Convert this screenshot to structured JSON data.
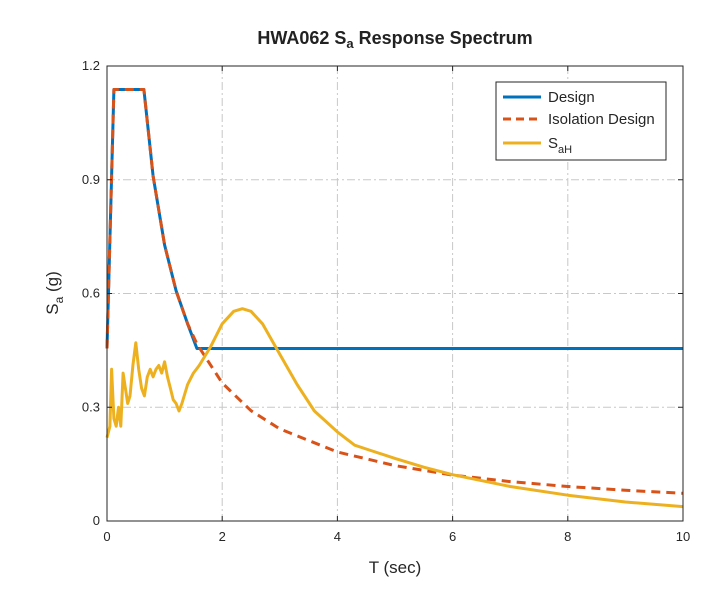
{
  "chart_data": {
    "type": "line",
    "title_prefix": "HWA062 S",
    "title_sub": "a",
    "title_suffix": " Response Spectrum",
    "xlabel": "T (sec)",
    "ylabel_main": "S",
    "ylabel_sub": "a",
    "ylabel_suffix": " (g)",
    "xlim": [
      0,
      10
    ],
    "ylim": [
      0,
      1.2
    ],
    "xticks": [
      0,
      2,
      4,
      6,
      8,
      10
    ],
    "yticks": [
      0,
      0.3,
      0.6,
      0.9,
      1.2
    ],
    "ytick_labels": [
      "0",
      "0.3",
      "0.6",
      "0.9",
      "1.2"
    ],
    "grid": true,
    "legend_placement": "top-right",
    "series": [
      {
        "name": "Design",
        "name_sub": "",
        "color": "#0072BD",
        "style": "solid",
        "x": [
          0,
          0.12,
          0.64,
          0.8,
          1.0,
          1.2,
          1.4,
          1.56,
          10
        ],
        "y": [
          0.455,
          1.138,
          1.138,
          0.91,
          0.728,
          0.607,
          0.52,
          0.455,
          0.455
        ]
      },
      {
        "name": "Isolation Design",
        "name_sub": "",
        "color": "#D95319",
        "style": "dashed",
        "x": [
          0,
          0.12,
          0.64,
          0.8,
          1.0,
          1.2,
          1.4,
          1.56,
          2.0,
          2.5,
          3.0,
          4.0,
          5.0,
          6.0,
          7.0,
          8.0,
          9.0,
          10.0
        ],
        "y": [
          0.455,
          1.138,
          1.138,
          0.91,
          0.728,
          0.607,
          0.52,
          0.467,
          0.364,
          0.291,
          0.243,
          0.182,
          0.146,
          0.121,
          0.104,
          0.091,
          0.081,
          0.073
        ]
      },
      {
        "name": "S",
        "name_sub": "aH",
        "color": "#EDB120",
        "style": "solid",
        "x": [
          0,
          0.05,
          0.08,
          0.12,
          0.16,
          0.2,
          0.24,
          0.28,
          0.32,
          0.36,
          0.4,
          0.45,
          0.5,
          0.55,
          0.6,
          0.65,
          0.7,
          0.75,
          0.8,
          0.85,
          0.9,
          0.95,
          1.0,
          1.05,
          1.1,
          1.15,
          1.2,
          1.25,
          1.3,
          1.4,
          1.5,
          1.6,
          1.8,
          2.0,
          2.2,
          2.35,
          2.5,
          2.7,
          3.0,
          3.3,
          3.6,
          4.0,
          4.3,
          4.5,
          5.0,
          5.5,
          6.0,
          7.0,
          8.0,
          9.0,
          10.0
        ],
        "y": [
          0.22,
          0.25,
          0.4,
          0.27,
          0.25,
          0.3,
          0.25,
          0.39,
          0.35,
          0.31,
          0.33,
          0.41,
          0.47,
          0.4,
          0.35,
          0.33,
          0.38,
          0.4,
          0.38,
          0.4,
          0.41,
          0.39,
          0.42,
          0.38,
          0.35,
          0.32,
          0.31,
          0.29,
          0.31,
          0.36,
          0.39,
          0.41,
          0.46,
          0.52,
          0.553,
          0.56,
          0.553,
          0.52,
          0.44,
          0.36,
          0.29,
          0.235,
          0.2,
          0.19,
          0.165,
          0.142,
          0.122,
          0.091,
          0.068,
          0.05,
          0.038
        ]
      }
    ]
  }
}
